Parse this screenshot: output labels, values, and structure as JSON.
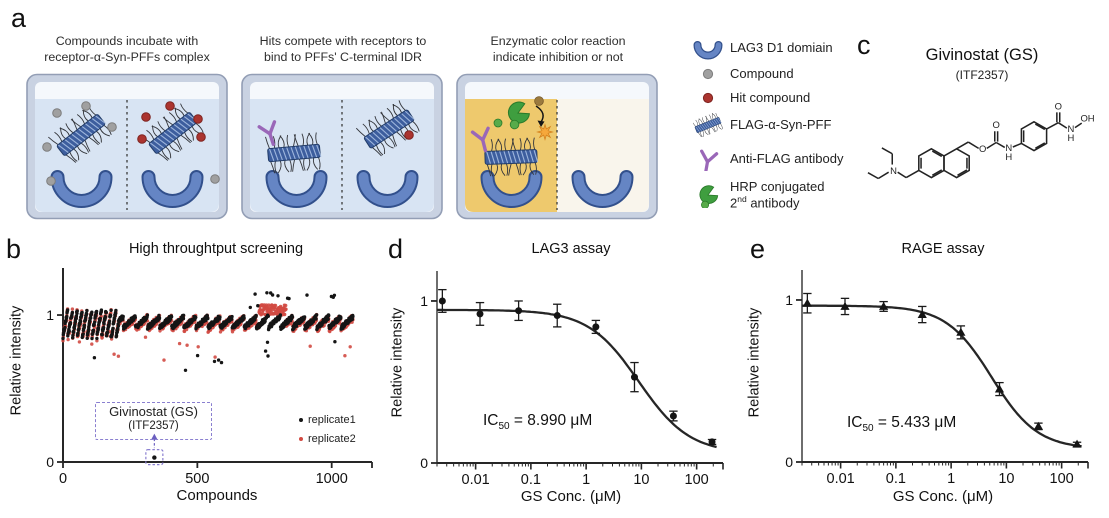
{
  "figure": {
    "panels": {
      "a": {
        "label": "a",
        "steps": [
          {
            "title": [
              "Compounds incubate with",
              "receptor-α-Syn-PFFs complex"
            ]
          },
          {
            "title": [
              "Hits compete with receptors to",
              "bind to PFFs' C-terminal IDR"
            ]
          },
          {
            "title": [
              "Enzymatic color reaction",
              "indicate inhibition or not"
            ]
          }
        ],
        "legend": [
          {
            "name": "lag3-d1-domain",
            "label": "LAG3 D1 domiain",
            "color": "#6585c4"
          },
          {
            "name": "compound",
            "label": "Compound",
            "color": "#a0a0a0"
          },
          {
            "name": "hit-compound",
            "label": "Hit compound",
            "color": "#ab342f"
          },
          {
            "name": "flag-a-syn-pff",
            "label": "FLAG-α-Syn-PFF",
            "color": "#3d5e9e"
          },
          {
            "name": "anti-flag-antibody",
            "label": "Anti-FLAG antibody",
            "color": "#9a67b8"
          },
          {
            "name": "hrp-2nd-antibody",
            "label_line1": "HRP conjugated",
            "line2_num": "2",
            "line2_sup": "nd",
            "line2_rest": " antibody",
            "color": "#3f9e3f"
          }
        ]
      },
      "b": {
        "label": "b"
      },
      "c": {
        "label": "c",
        "title": "Givinostat (GS)",
        "subtitle": "(ITF2357)",
        "atom_labels": {
          "amine_n": "N",
          "ester_o": "O",
          "carbamate_o": "O",
          "carbamate_n": "N",
          "carbamate_h": "H",
          "amide_o": "O",
          "amide_n": "N",
          "amide_h": "H",
          "hydroxyl": "OH"
        }
      },
      "d": {
        "label": "d"
      },
      "e": {
        "label": "e"
      }
    }
  },
  "chart_data": [
    {
      "id": "b",
      "type": "scatter",
      "title": "High throughtput screening",
      "xlabel": "Compounds",
      "ylabel": "Relative intensity",
      "xlim": [
        0,
        1150
      ],
      "ylim": [
        0,
        1.32
      ],
      "x_ticks": [
        0,
        500,
        1000
      ],
      "x_tick_labels": [
        "0",
        "500",
        "1000"
      ],
      "y_ticks": [
        0,
        1
      ],
      "y_tick_labels": [
        "0",
        "1"
      ],
      "series": [
        {
          "name": "replicate1",
          "color": "#151515"
        },
        {
          "name": "replicate2",
          "color": "#d24a42"
        }
      ],
      "n_compounds": 1080,
      "band_description": "both replicates cluster in diagonal plate-streaks near relative intensity 0.85-1.05 across ~1080 compounds; sparse low outliers to ~0.6; replicate2 forms a dense cluster slightly above 1 near compounds 730-830; replicate1 high outliers up to ~1.18 beyond compound 850",
      "generator": {
        "seed": 7,
        "n": 1080,
        "early_cutoff": 210,
        "early_period": 18,
        "early_base": 0.855,
        "early_amp": 0.185,
        "late_period": 45,
        "late_base": 0.915,
        "late_amp": 0.075,
        "noise1": 0.03,
        "noise2": 0.05,
        "red_blob": [
          730,
          830
        ],
        "red_blob_base": 1.0,
        "red_blob_amp": 0.07,
        "high_outlier_min_x": 620,
        "high_outlier_p": 0.02,
        "low_outlier_p": 0.012
      },
      "hit_annotation": {
        "line1": "Givinostat (GS)",
        "line2": "(ITF2357)",
        "x": 340,
        "y": 0.03
      }
    },
    {
      "id": "d",
      "type": "dose-response",
      "title": "LAG3 assay",
      "xlabel": "GS Conc. (μM)",
      "ylabel": "Relative intensity",
      "xscale": "log",
      "xlim": [
        0.002,
        300
      ],
      "ylim": [
        0,
        1.185
      ],
      "x_major_ticks": [
        0.01,
        0.1,
        1,
        10,
        100
      ],
      "x_major_labels": [
        "0.01",
        "0.1",
        "1",
        "10",
        "100"
      ],
      "y_ticks": [
        0,
        1
      ],
      "y_tick_labels": [
        "0",
        "1"
      ],
      "marker": "circle",
      "points": {
        "x": [
          0.0025,
          0.012,
          0.06,
          0.3,
          1.5,
          7.5,
          38,
          190
        ],
        "y": [
          1.0,
          0.92,
          0.94,
          0.91,
          0.84,
          0.53,
          0.29,
          0.13
        ],
        "err": [
          0.07,
          0.07,
          0.06,
          0.07,
          0.04,
          0.09,
          0.03,
          0.015
        ]
      },
      "fit": {
        "model": "four-parameter logistic",
        "top": 0.945,
        "bottom": 0.06,
        "ic50": 8.99,
        "hill": 0.95
      },
      "ic50_text": {
        "prefix": "IC",
        "sub": "50",
        "rest": " = 8.990 μM"
      }
    },
    {
      "id": "e",
      "type": "dose-response",
      "title": "RAGE assay",
      "xlabel": "GS Conc. (μM)",
      "ylabel": "Relative intensity",
      "xscale": "log",
      "xlim": [
        0.002,
        300
      ],
      "ylim": [
        0,
        1.185
      ],
      "x_major_ticks": [
        0.01,
        0.1,
        1,
        10,
        100
      ],
      "x_major_labels": [
        "0.01",
        "0.1",
        "1",
        "10",
        "100"
      ],
      "y_ticks": [
        0,
        1
      ],
      "y_tick_labels": [
        "0",
        "1"
      ],
      "marker": "triangle",
      "points": {
        "x": [
          0.0025,
          0.012,
          0.06,
          0.3,
          1.5,
          7.5,
          38,
          190
        ],
        "y": [
          0.98,
          0.96,
          0.96,
          0.91,
          0.8,
          0.45,
          0.22,
          0.11
        ],
        "err": [
          0.06,
          0.05,
          0.03,
          0.05,
          0.04,
          0.04,
          0.02,
          0.012
        ]
      },
      "fit": {
        "model": "four-parameter logistic",
        "top": 0.965,
        "bottom": 0.08,
        "ic50": 5.433,
        "hill": 1.05
      },
      "ic50_text": {
        "prefix": "IC",
        "sub": "50",
        "rest": " = 5.433 μM"
      }
    }
  ]
}
